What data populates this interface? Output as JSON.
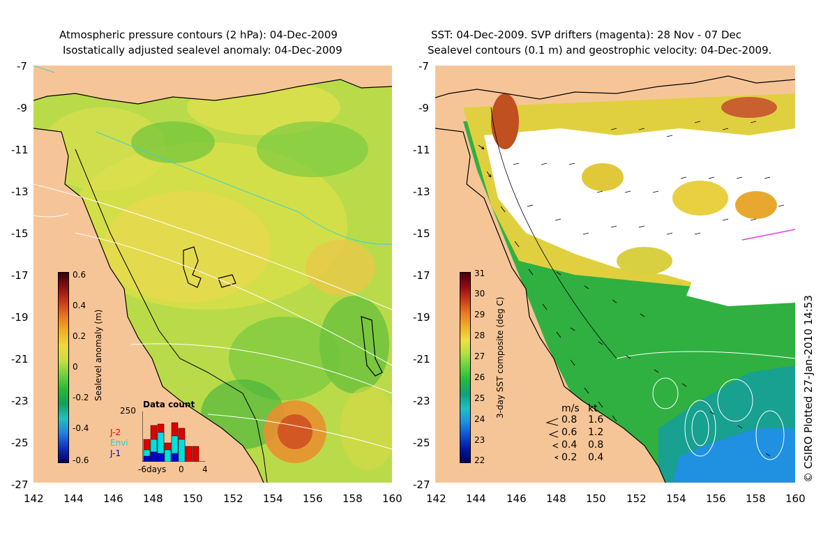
{
  "left_panel": {
    "title_line1": "Atmospheric pressure contours (2 hPa): 04-Dec-2009",
    "title_line2": "Isostatically adjusted sealevel anomaly: 04-Dec-2009",
    "colorbar": {
      "title": "Sealevel anomaly (m)",
      "ticks": [
        "0.6",
        "0.4",
        "0.2",
        "0",
        "-0.2",
        "-0.4",
        "-0.6"
      ],
      "colors": [
        "#3a0008",
        "#8a1010",
        "#c8381a",
        "#e8781e",
        "#f0b020",
        "#f0d838",
        "#c8e040",
        "#70d040",
        "#28b830",
        "#10a060",
        "#20c0c0",
        "#2080e0",
        "#1030c0",
        "#000060"
      ]
    },
    "data_count": {
      "title": "Data count",
      "max_label": "250",
      "legend": [
        {
          "name": "J-2",
          "color": "#e00000"
        },
        {
          "name": "Envi",
          "color": "#00e0e0"
        },
        {
          "name": "J-1",
          "color": "#0000d0"
        }
      ],
      "x_labels": [
        "-6days",
        "0",
        "4"
      ]
    }
  },
  "right_panel": {
    "title_line1": "SST: 04-Dec-2009. SVP drifters (magenta): 28 Nov - 07 Dec",
    "title_line2": "Sealevel contours (0.1 m) and geostrophic velocity: 04-Dec-2009.",
    "colorbar": {
      "title": "3-day SST composite (deg C)",
      "ticks": [
        "31",
        "30",
        "29",
        "28",
        "27",
        "26",
        "25",
        "24",
        "23",
        "22"
      ],
      "colors": [
        "#4a0008",
        "#900a10",
        "#c83a1a",
        "#e87a20",
        "#f0b028",
        "#f0e040",
        "#b0e040",
        "#60d040",
        "#20b840",
        "#10a080",
        "#20c0c0",
        "#2090e0",
        "#1050d0",
        "#0018a0",
        "#000060"
      ]
    },
    "velocity_legend": {
      "header_ms": "m/s",
      "header_kt": "kt",
      "rows": [
        {
          "ms": "0.8",
          "kt": "1.6"
        },
        {
          "ms": "0.6",
          "kt": "1.2"
        },
        {
          "ms": "0.4",
          "kt": "0.8"
        },
        {
          "ms": "0.2",
          "kt": "0.4"
        }
      ]
    }
  },
  "axes": {
    "lat_labels": [
      "-7",
      "-9",
      "-11",
      "-13",
      "-15",
      "-17",
      "-19",
      "-21",
      "-23",
      "-25",
      "-27"
    ],
    "lon_labels": [
      "142",
      "144",
      "146",
      "148",
      "150",
      "152",
      "154",
      "156",
      "158",
      "160"
    ]
  },
  "credit": "© CSIRO Plotted 27-Jan-2010 14:53",
  "colors": {
    "land": "#f6c597",
    "ocean_base": "#b8dc48",
    "cloud": "#ffffff"
  }
}
